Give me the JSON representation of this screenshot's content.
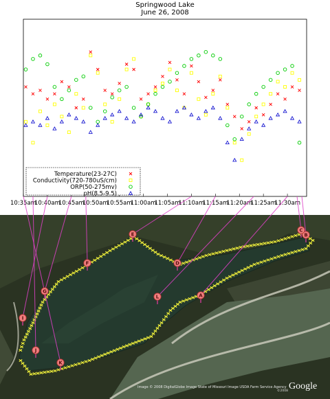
{
  "chart_data": {
    "type": "scatter",
    "title": "Springwood Lake",
    "subtitle": "June 26, 2008",
    "x_ticks": [
      "10:35am",
      "10:40am",
      "10:45am",
      "10:50am",
      "10:55am",
      "11:00am",
      "11:05am",
      "11:10am",
      "11:15am",
      "11:20am",
      "11:25am",
      "11:30am"
    ],
    "x_range": [
      "10:35am",
      "11:34am"
    ],
    "y_ticks_labeled": false,
    "grid": false,
    "legend_position": "bottom-left",
    "series": [
      {
        "name": "Temperature(23-27C)",
        "marker": "x",
        "color": "#ff0000",
        "x": [
          0.5,
          2,
          3.5,
          5,
          6.5,
          8,
          9.5,
          11,
          12.5,
          14,
          15.5,
          17,
          18.5,
          20,
          21.5,
          23,
          24.5,
          26,
          27.5,
          29,
          30.5,
          32,
          33.5,
          35,
          36.5,
          38,
          39.5,
          41,
          42.5,
          44,
          45.5,
          47,
          48.5,
          50,
          51.5,
          53,
          54.5,
          56,
          57.5
        ],
        "y": [
          0.62,
          0.58,
          0.6,
          0.55,
          0.58,
          0.65,
          0.62,
          0.5,
          0.55,
          0.82,
          0.72,
          0.6,
          0.58,
          0.64,
          0.75,
          0.72,
          0.55,
          0.58,
          0.62,
          0.68,
          0.76,
          0.66,
          0.58,
          0.74,
          0.65,
          0.56,
          0.6,
          0.66,
          0.52,
          0.45,
          0.38,
          0.42,
          0.5,
          0.46,
          0.52,
          0.58,
          0.55,
          0.62,
          0.6
        ]
      },
      {
        "name": "Conductivity(720-780uS/cm)",
        "marker": "square",
        "color": "#ffff00",
        "x": [
          0.5,
          2,
          3.5,
          5,
          6.5,
          8,
          9.5,
          11,
          12.5,
          14,
          15.5,
          17,
          18.5,
          20,
          21.5,
          23,
          24.5,
          26,
          27.5,
          29,
          30.5,
          32,
          33.5,
          35,
          36.5,
          38,
          39.5,
          41,
          42.5,
          44,
          45.5,
          47,
          48.5,
          50,
          51.5,
          53,
          54.5,
          56,
          57.5
        ],
        "y": [
          0.42,
          0.3,
          0.48,
          0.4,
          0.52,
          0.45,
          0.36,
          0.58,
          0.5,
          0.8,
          0.7,
          0.52,
          0.42,
          0.55,
          0.72,
          0.78,
          0.45,
          0.52,
          0.6,
          0.64,
          0.72,
          0.6,
          0.5,
          0.7,
          0.55,
          0.46,
          0.58,
          0.68,
          0.5,
          0.3,
          0.2,
          0.35,
          0.45,
          0.52,
          0.58,
          0.65,
          0.62,
          0.7,
          0.66
        ]
      },
      {
        "name": "ORP(50-275mv)",
        "marker": "circle",
        "color": "#00cc00",
        "x": [
          0.5,
          2,
          3.5,
          5,
          6.5,
          8,
          9.5,
          11,
          12.5,
          14,
          15.5,
          17,
          18.5,
          20,
          21.5,
          23,
          24.5,
          26,
          27.5,
          29,
          30.5,
          32,
          33.5,
          35,
          36.5,
          38,
          39.5,
          41,
          42.5,
          44,
          45.5,
          47,
          48.5,
          50,
          51.5,
          53,
          54.5,
          56,
          57.5
        ],
        "y": [
          0.72,
          0.78,
          0.8,
          0.75,
          0.62,
          0.55,
          0.6,
          0.66,
          0.68,
          0.5,
          0.42,
          0.48,
          0.56,
          0.6,
          0.62,
          0.5,
          0.45,
          0.52,
          0.58,
          0.62,
          0.65,
          0.7,
          0.74,
          0.78,
          0.8,
          0.82,
          0.8,
          0.78,
          0.4,
          0.32,
          0.45,
          0.52,
          0.58,
          0.62,
          0.66,
          0.7,
          0.72,
          0.74,
          0.3
        ]
      },
      {
        "name": "pH(8.5-9.5)",
        "marker": "triangle",
        "color": "#0000cc",
        "x": [
          0.5,
          2,
          3.5,
          5,
          6.5,
          8,
          9.5,
          11,
          12.5,
          14,
          15.5,
          17,
          18.5,
          20,
          21.5,
          23,
          24.5,
          26,
          27.5,
          29,
          30.5,
          32,
          33.5,
          35,
          36.5,
          38,
          39.5,
          41,
          42.5,
          44,
          45.5,
          47,
          48.5,
          50,
          51.5,
          53,
          54.5,
          56,
          57.5
        ],
        "y": [
          0.4,
          0.42,
          0.4,
          0.44,
          0.38,
          0.42,
          0.46,
          0.44,
          0.42,
          0.36,
          0.4,
          0.44,
          0.46,
          0.48,
          0.44,
          0.42,
          0.46,
          0.5,
          0.48,
          0.44,
          0.42,
          0.48,
          0.5,
          0.46,
          0.44,
          0.48,
          0.5,
          0.44,
          0.3,
          0.2,
          0.32,
          0.38,
          0.42,
          0.4,
          0.44,
          0.46,
          0.48,
          0.44,
          0.42
        ]
      }
    ]
  },
  "map": {
    "attribution": "Image © 2008 DigitalGlobe  Image State of Missouri  Image USDA Farm Service Agency",
    "copyright": "©2008",
    "logo": "Google",
    "markers": [
      "A",
      "B",
      "C",
      "D",
      "E",
      "F",
      "G",
      "I",
      "J",
      "K",
      "L"
    ],
    "colors": {
      "track": "#e8e83a",
      "connector": "#e040c8",
      "pin": "#f08080"
    }
  }
}
